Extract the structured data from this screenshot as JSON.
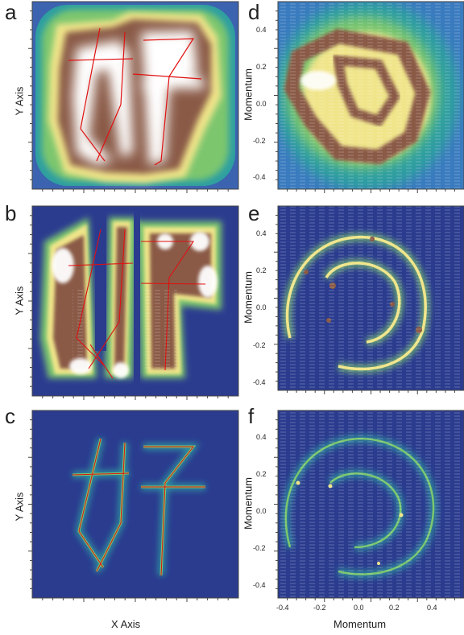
{
  "panels": {
    "a": "a",
    "b": "b",
    "c": "c",
    "d": "d",
    "e": "e",
    "f": "f"
  },
  "axes": {
    "left_ylabel": "Y Axis",
    "left_xlabel": "X Axis",
    "right_ylabel": "Momentum",
    "right_xlabel": "Momentum"
  },
  "ticks": {
    "y": [
      "0.4",
      "0.2",
      "0.0",
      "-0.2",
      "-0.4"
    ],
    "x": [
      "-0.4",
      "-0.2",
      "0.0",
      "0.2",
      "0.4"
    ]
  },
  "colors": {
    "background": "#2b3c8f",
    "teal": "#2e9fa0",
    "green": "#7cc66e",
    "yellow": "#f0e58a",
    "brown": "#8a5a46",
    "white": "#ffffff",
    "trace": "#e01010"
  }
}
